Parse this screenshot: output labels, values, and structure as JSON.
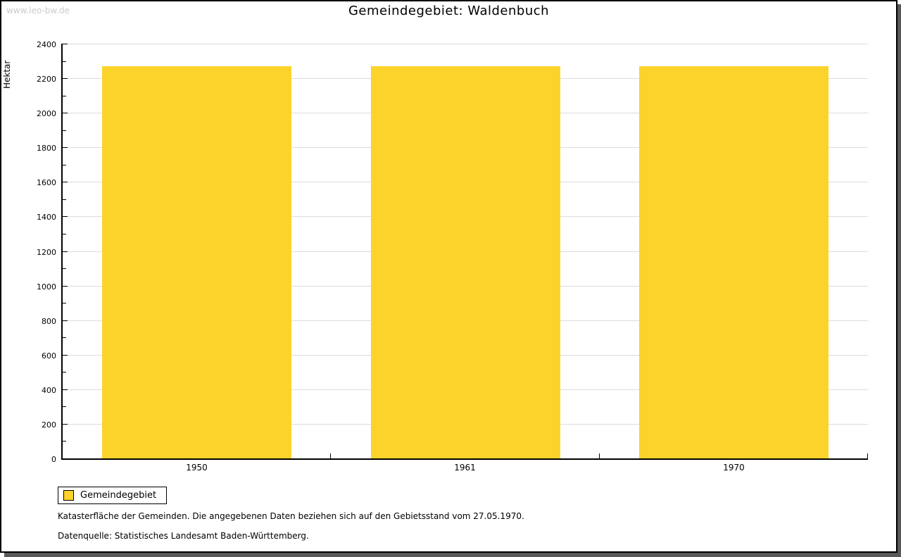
{
  "watermark": "www.leo-bw.de",
  "chart_data": {
    "type": "bar",
    "title": "Gemeindegebiet: Waldenbuch",
    "categories": [
      "1950",
      "1961",
      "1970"
    ],
    "series": [
      {
        "name": "Gemeindegebiet",
        "values": [
          2270,
          2270,
          2270
        ]
      }
    ],
    "xlabel": "",
    "ylabel": "Hektar",
    "ylim": [
      0,
      2400
    ],
    "ytick_step": 200,
    "yminor_step": 100,
    "grid": true,
    "legend_position": "bottom-left"
  },
  "legend": {
    "items": [
      {
        "label": "Gemeindegebiet",
        "color": "#FCD32B"
      }
    ]
  },
  "footnotes": [
    "Katasterfläche der Gemeinden. Die angegebenen Daten beziehen sich auf den Gebietsstand vom 27.05.1970.",
    "Datenquelle: Statistisches Landesamt Baden-Württemberg."
  ],
  "colors": {
    "bar": "#FCD32B",
    "grid": "#DCDCDC",
    "axis": "#000000",
    "shadow": "#595959",
    "watermark": "#CCCCCC"
  }
}
